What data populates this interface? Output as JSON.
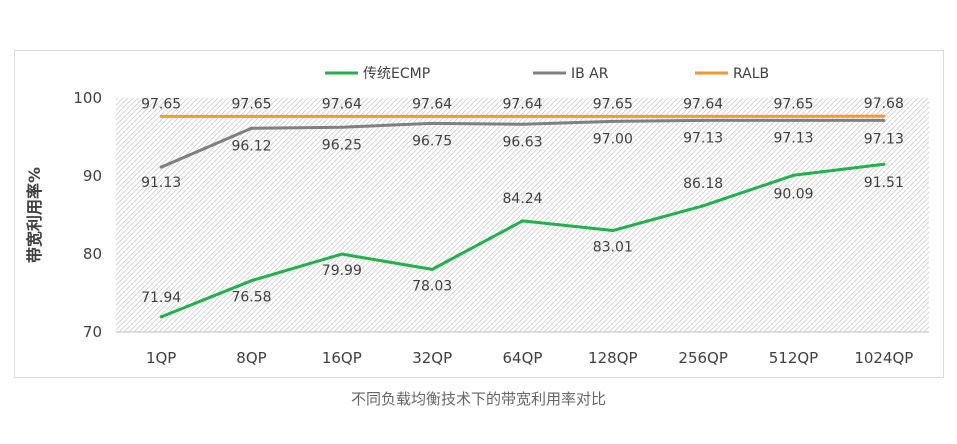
{
  "caption": "不同负载均衡技术下的带宽利用率对比",
  "chart_data": {
    "type": "line",
    "title": "",
    "xlabel": "",
    "ylabel": "带宽利用率%",
    "ylim": [
      70,
      100
    ],
    "yticks": [
      70,
      80,
      90,
      100
    ],
    "grid": false,
    "legend_position": "top",
    "categories": [
      "1QP",
      "8QP",
      "16QP",
      "32QP",
      "64QP",
      "128QP",
      "256QP",
      "512QP",
      "1024QP"
    ],
    "series": [
      {
        "name": "传统ECMP",
        "color": "#1fb24a",
        "values": [
          71.94,
          76.58,
          79.99,
          78.03,
          84.24,
          83.01,
          86.18,
          90.09,
          91.51
        ],
        "labels": [
          "71.94",
          "76.58",
          "79.99",
          "78.03",
          "84.24",
          "83.01",
          "86.18",
          "90.09",
          "91.51"
        ]
      },
      {
        "name": "IB AR",
        "color": "#808080",
        "values": [
          91.13,
          96.12,
          96.25,
          96.75,
          96.63,
          97.0,
          97.13,
          97.13,
          97.13
        ],
        "labels": [
          "91.13",
          "96.12",
          "96.25",
          "96.75",
          "96.63",
          "97.00",
          "97.13",
          "97.13",
          "97.13"
        ]
      },
      {
        "name": "RALB",
        "color": "#f39a2e",
        "values": [
          97.65,
          97.65,
          97.64,
          97.64,
          97.64,
          97.65,
          97.64,
          97.65,
          97.68
        ],
        "labels": [
          "97.65",
          "97.65",
          "97.64",
          "97.64",
          "97.64",
          "97.65",
          "97.64",
          "97.65",
          "97.68"
        ]
      }
    ]
  }
}
